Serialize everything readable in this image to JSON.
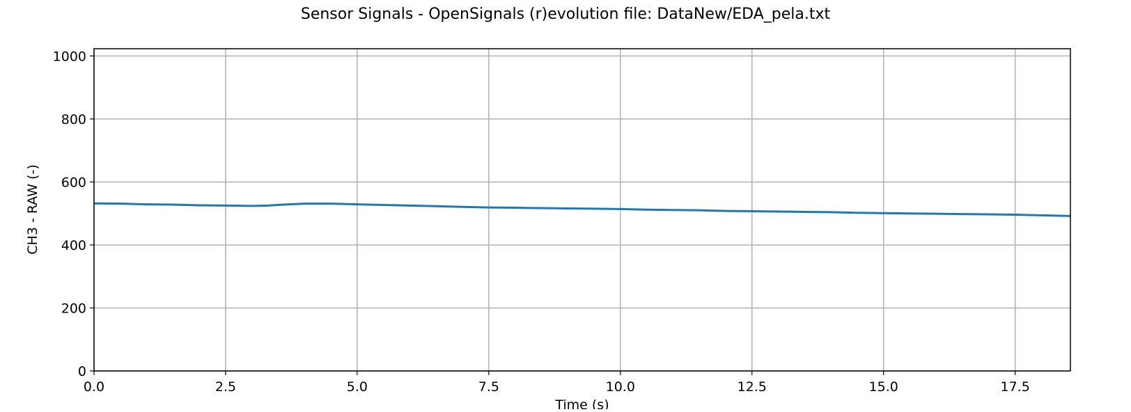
{
  "chart_data": {
    "type": "line",
    "title": "Sensor Signals - OpenSignals (r)evolution file: DataNew/EDA_pela.txt",
    "xlabel": "Time (s)",
    "ylabel": "CH3 - RAW (-)",
    "xlim": [
      0,
      18.55
    ],
    "ylim": [
      0,
      1023
    ],
    "x_ticks": [
      "0.0",
      "2.5",
      "5.0",
      "7.5",
      "10.0",
      "12.5",
      "15.0",
      "17.5"
    ],
    "y_ticks": [
      "0",
      "200",
      "400",
      "600",
      "800",
      "1000"
    ],
    "grid": true,
    "legend": "none",
    "color": "#1f77b4",
    "series": [
      {
        "x": [
          0,
          0.5,
          1.0,
          1.5,
          2.0,
          2.5,
          3.0,
          3.3,
          3.6,
          4.0,
          4.5,
          5.0,
          5.5,
          6.0,
          6.5,
          7.0,
          7.5,
          8.0,
          8.5,
          9.0,
          9.5,
          10.0,
          10.5,
          11.0,
          11.5,
          12.0,
          12.5,
          13.0,
          13.5,
          14.0,
          14.5,
          15.0,
          15.5,
          16.0,
          16.5,
          17.0,
          17.5,
          18.0,
          18.55
        ],
        "y": [
          532,
          531,
          529,
          528,
          526,
          525,
          524,
          525,
          528,
          531,
          531,
          529,
          527,
          525,
          523,
          521,
          519,
          518,
          517,
          516,
          515,
          514,
          512,
          511,
          510,
          508,
          507,
          506,
          505,
          504,
          502,
          501,
          500,
          499,
          498,
          497,
          496,
          494,
          492
        ]
      }
    ]
  }
}
